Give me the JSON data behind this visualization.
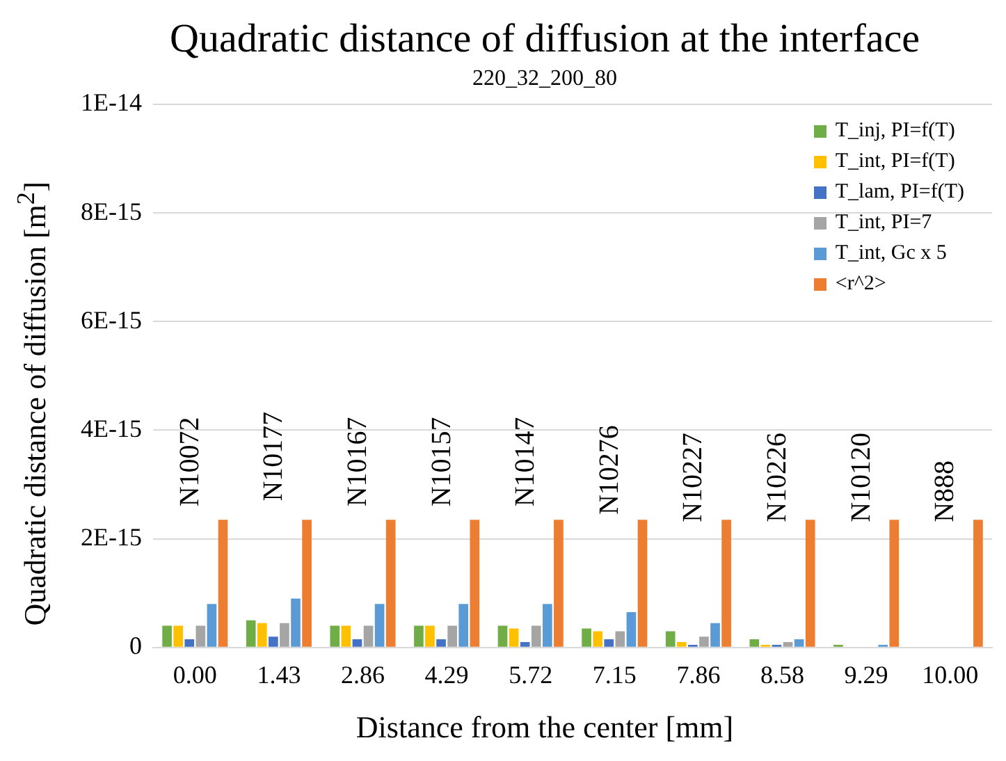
{
  "chart_data": {
    "type": "bar",
    "title": "Quadratic distance of diffusion at the interface",
    "subtitle": "220_32_200_80",
    "xlabel": "Distance from the center [mm]",
    "ylabel": "Quadratic distance of diffusion [m$^{2}$]",
    "categories": [
      "0.00",
      "1.43",
      "2.86",
      "4.29",
      "5.72",
      "7.15",
      "7.86",
      "8.58",
      "9.29",
      "10.00"
    ],
    "series": [
      {
        "name": "T_inj, PI=f(T)",
        "color": "#70ad47",
        "values": [
          4e-16,
          5e-16,
          4e-16,
          4e-16,
          4e-16,
          3.5e-16,
          3e-16,
          1.5e-16,
          5e-17,
          0
        ]
      },
      {
        "name": "T_int, PI=f(T)",
        "color": "#ffc000",
        "values": [
          4e-16,
          4.5e-16,
          4e-16,
          4e-16,
          3.5e-16,
          3e-16,
          1e-16,
          5e-17,
          0,
          0
        ]
      },
      {
        "name": "T_lam, PI=f(T)",
        "color": "#4472c4",
        "values": [
          1.5e-16,
          2e-16,
          1.5e-16,
          1.5e-16,
          1e-16,
          1.5e-16,
          5e-17,
          5e-17,
          0,
          0
        ]
      },
      {
        "name": "T_int, PI=7",
        "color": "#a5a5a5",
        "values": [
          4e-16,
          4.5e-16,
          4e-16,
          4e-16,
          4e-16,
          3e-16,
          2e-16,
          1e-16,
          0,
          0
        ]
      },
      {
        "name": "T_int, Gc x 5",
        "color": "#5b9bd5",
        "values": [
          8e-16,
          9e-16,
          8e-16,
          8e-16,
          8e-16,
          6.5e-16,
          4.5e-16,
          1.5e-16,
          5e-17,
          0
        ]
      },
      {
        "name": "<r^2>",
        "color": "#ed7d31",
        "values": [
          2.35e-15,
          2.35e-15,
          2.35e-15,
          2.35e-15,
          2.35e-15,
          2.35e-15,
          2.35e-15,
          2.35e-15,
          2.35e-15,
          2.35e-15
        ]
      }
    ],
    "ylim": [
      0,
      1e-14
    ],
    "yticks": [
      0,
      {
        "value": 2e-15,
        "label": "2E-15"
      },
      {
        "value": 4e-15,
        "label": "4E-15"
      },
      {
        "value": 6e-15,
        "label": "6E-15"
      },
      {
        "value": 8e-15,
        "label": "8E-15"
      },
      {
        "value": 1e-14,
        "label": "1E-14"
      }
    ],
    "annotations": [
      "N10072",
      "N10177",
      "N10167",
      "N10157",
      "N10147",
      "N10276",
      "N10227",
      "N10226",
      "N10120",
      "N888"
    ],
    "grid": "y",
    "legend": "top right"
  }
}
